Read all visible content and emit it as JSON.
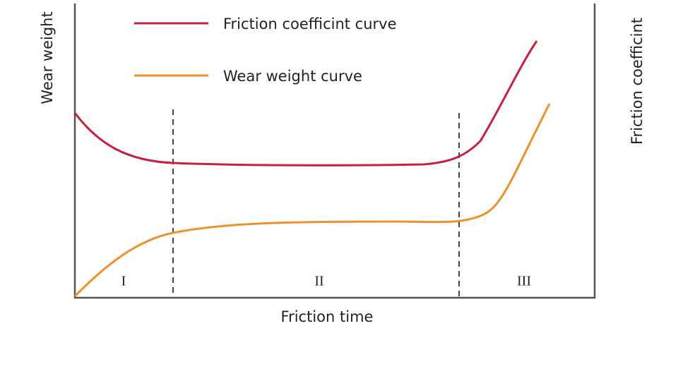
{
  "legend": [
    {
      "label": "Friction coefficint curve"
    },
    {
      "label": "Wear weight curve"
    }
  ],
  "axes": {
    "x_label": "Friction time",
    "y_left_label": "Wear weight",
    "y_right_label": "Friction coefficint"
  },
  "regions": [
    "I",
    "II",
    "III"
  ]
}
